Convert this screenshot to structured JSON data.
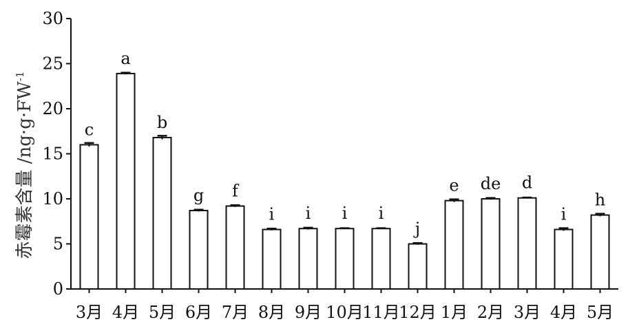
{
  "chart_data": {
    "type": "bar",
    "title": "",
    "xlabel": "",
    "ylabel": "赤霉素含量 /ng·g·FW",
    "ylabel_superscript": "-1",
    "ylim": [
      0,
      30
    ],
    "yticks": [
      0,
      5,
      10,
      15,
      20,
      25,
      30
    ],
    "grid": false,
    "legend": "none",
    "bar_fill": "#ffffff",
    "bar_stroke": "#111111",
    "categories": [
      "3月",
      "4月",
      "5月",
      "6月",
      "7月",
      "8月",
      "9月",
      "10月",
      "11月",
      "12月",
      "1月",
      "2月",
      "3月",
      "4月",
      "5月"
    ],
    "series": [
      {
        "values": [
          16.0,
          23.9,
          16.8,
          8.7,
          9.2,
          6.6,
          6.7,
          6.7,
          6.7,
          5.0,
          9.8,
          10.0,
          10.1,
          6.6,
          8.2
        ],
        "errors": [
          0.2,
          0.1,
          0.2,
          0.1,
          0.1,
          0.1,
          0.1,
          0.05,
          0.05,
          0.1,
          0.15,
          0.1,
          0.05,
          0.15,
          0.15
        ]
      }
    ],
    "significance_letters": [
      "c",
      "a",
      "b",
      "g",
      "f",
      "i",
      "i",
      "i",
      "i",
      "j",
      "e",
      "de",
      "d",
      "i",
      "h"
    ]
  }
}
